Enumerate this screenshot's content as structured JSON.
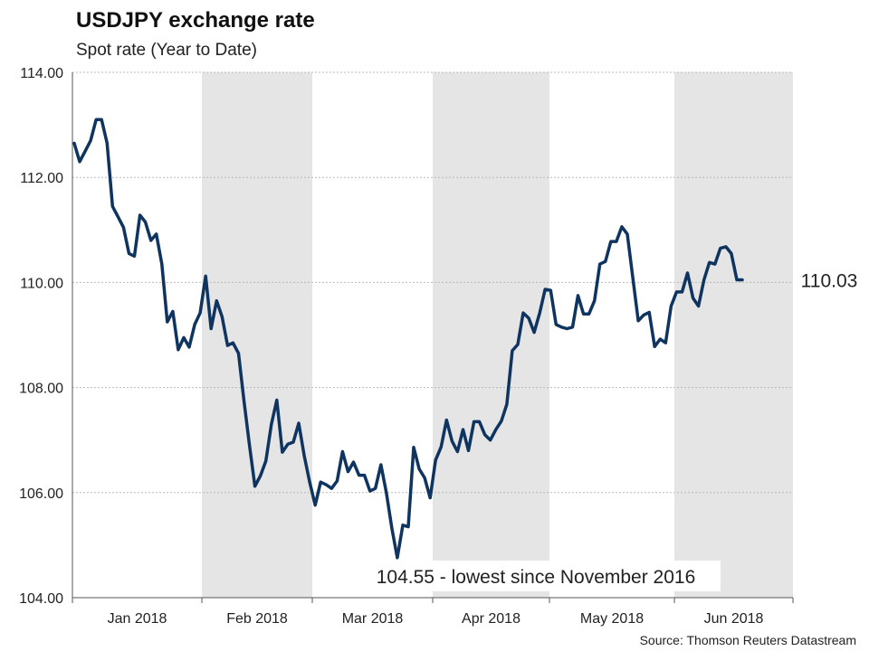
{
  "header": {
    "title": "USDJPY exchange rate",
    "subtitle": "Spot rate (Year to Date)"
  },
  "footer": {
    "source": "Source: Thomson Reuters Datastream"
  },
  "colors": {
    "line": "#0f3460",
    "shade": "#e5e5e5",
    "grid": "#b9b9b9"
  },
  "chart_data": {
    "type": "line",
    "title": "USDJPY exchange rate",
    "subtitle": "Spot rate (Year to Date)",
    "xlabel": "",
    "ylabel": "",
    "ylim": [
      104,
      114
    ],
    "yticks": [
      "114.00",
      "112.00",
      "110.00",
      "108.00",
      "106.00",
      "104.00"
    ],
    "xticks": [
      "Jan 2018",
      "Feb 2018",
      "Mar 2018",
      "Apr 2018",
      "May 2018",
      "Jun 2018"
    ],
    "grid": "horizontal dotted",
    "shaded_months": [
      "Feb 2018",
      "Apr 2018",
      "Jun 2018"
    ],
    "series": [
      {
        "values": [
          112.65,
          112.3,
          112.5,
          112.7,
          113.1,
          113.1,
          112.65,
          111.45,
          111.25,
          111.05,
          110.55,
          110.5,
          111.28,
          111.15,
          110.8,
          110.92,
          110.35,
          109.25,
          109.45,
          108.72,
          108.95,
          108.77,
          109.2,
          109.42,
          110.12,
          109.12,
          109.65,
          109.35,
          108.8,
          108.85,
          108.65,
          107.75,
          106.9,
          106.12,
          106.32,
          106.6,
          107.3,
          107.76,
          106.77,
          106.92,
          106.96,
          107.32,
          106.7,
          106.2,
          105.76,
          106.2,
          106.15,
          106.08,
          106.22,
          106.78,
          106.4,
          106.58,
          106.33,
          106.33,
          106.03,
          106.08,
          106.53,
          106.0,
          105.32,
          104.76,
          105.38,
          105.35,
          106.86,
          106.45,
          106.28,
          105.9,
          106.62,
          106.87,
          107.38,
          106.98,
          106.78,
          107.2,
          106.8,
          107.35,
          107.35,
          107.1,
          107.0,
          107.2,
          107.36,
          107.68,
          108.7,
          108.82,
          109.42,
          109.32,
          109.05,
          109.42,
          109.87,
          109.85,
          109.2,
          109.15,
          109.12,
          109.15,
          109.75,
          109.4,
          109.4,
          109.65,
          110.35,
          110.4,
          110.78,
          110.78,
          111.06,
          110.92,
          110.1,
          109.27,
          109.38,
          109.43,
          108.78,
          108.92,
          108.85,
          109.55,
          109.82,
          109.82,
          110.18,
          109.7,
          109.55,
          110.05,
          110.38,
          110.35,
          110.65,
          110.68,
          110.55,
          110.05,
          110.05
        ]
      }
    ],
    "annotations": [
      {
        "text": "104.55 - lowest since November 2016",
        "value": 104.55,
        "at": "Mar 2018"
      },
      {
        "text": "110.03",
        "value": 110.03,
        "at": "last point"
      }
    ]
  }
}
